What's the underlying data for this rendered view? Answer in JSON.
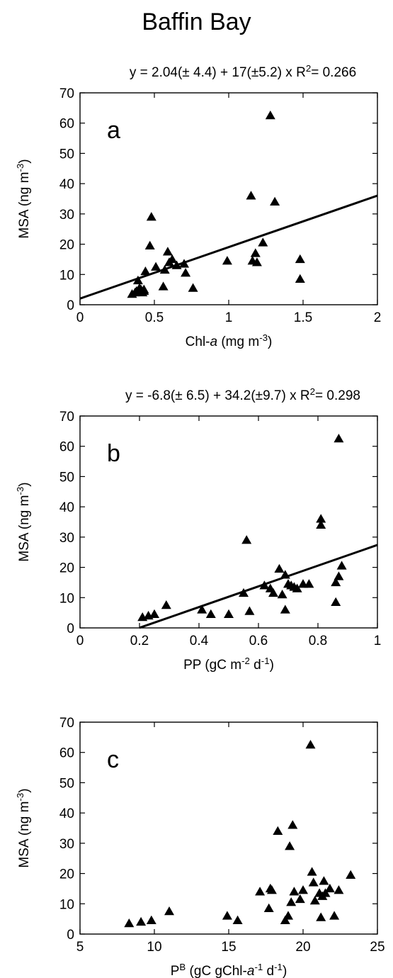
{
  "figure": {
    "title": "Baffin Bay"
  },
  "chart_data": [
    {
      "type": "scatter",
      "panel_label": "a",
      "equation": "y = 2.04(± 4.4) + 17(±5.2) x",
      "r2_prefix": "R",
      "r2_sup": "2",
      "r2_value": "= 0.266",
      "ylabel": "MSA (ng m",
      "ylabel_sup": "-3",
      "ylabel_end": ")",
      "xlabel_parts": [
        {
          "text": "Chl-"
        },
        {
          "text": "a",
          "italic": true
        },
        {
          "text": " (mg m"
        },
        {
          "text": "-3",
          "sup": true
        },
        {
          "text": ")"
        }
      ],
      "xlim": [
        0,
        2
      ],
      "ylim": [
        0,
        70
      ],
      "xticks": [
        0,
        0.5,
        1,
        1.5,
        2
      ],
      "xtick_labels": [
        "0",
        "0.5",
        "1",
        "1.5",
        "2"
      ],
      "yticks": [
        0,
        10,
        20,
        30,
        40,
        50,
        60,
        70
      ],
      "ytick_labels": [
        "0",
        "10",
        "20",
        "30",
        "40",
        "50",
        "60",
        "70"
      ],
      "fit_line": {
        "intercept": 2.04,
        "slope": 17,
        "x_range": [
          0,
          2
        ]
      },
      "points": {
        "x": [
          0.35,
          0.37,
          0.38,
          0.4,
          0.41,
          0.42,
          0.43,
          0.44,
          0.39,
          0.43,
          0.47,
          0.48,
          0.51,
          0.56,
          0.57,
          0.59,
          0.6,
          0.62,
          0.65,
          0.7,
          0.71,
          0.76,
          0.99,
          1.15,
          1.16,
          1.18,
          1.19,
          1.23,
          1.28,
          1.31,
          1.48,
          1.48
        ],
        "y": [
          3.5,
          4,
          4.5,
          5.5,
          5,
          4,
          4.5,
          11,
          8,
          5,
          19.5,
          29,
          12.5,
          6,
          11.5,
          17.5,
          14,
          15,
          13,
          13.5,
          10.5,
          5.5,
          14.5,
          36,
          14.5,
          17,
          14,
          20.5,
          62.5,
          34,
          15,
          8.5
        ]
      }
    },
    {
      "type": "scatter",
      "panel_label": "b",
      "equation": "y = -6.8(± 6.5) + 34.2(±9.7) x",
      "r2_prefix": "R",
      "r2_sup": "2",
      "r2_value": "= 0.298",
      "ylabel": "MSA (ng m",
      "ylabel_sup": "-3",
      "ylabel_end": ")",
      "xlabel_parts": [
        {
          "text": "PP (gC m"
        },
        {
          "text": "-2",
          "sup": true
        },
        {
          "text": " d"
        },
        {
          "text": "-1",
          "sup": true
        },
        {
          "text": ")"
        }
      ],
      "xlim": [
        0,
        1
      ],
      "ylim": [
        0,
        70
      ],
      "xticks": [
        0,
        0.2,
        0.4,
        0.6,
        0.8,
        1
      ],
      "xtick_labels": [
        "0",
        "0.2",
        "0.4",
        "0.6",
        "0.8",
        "1"
      ],
      "yticks": [
        0,
        10,
        20,
        30,
        40,
        50,
        60,
        70
      ],
      "ytick_labels": [
        "0",
        "10",
        "20",
        "30",
        "40",
        "50",
        "60",
        "70"
      ],
      "fit_line": {
        "intercept": -6.8,
        "slope": 34.2,
        "x_range": [
          0.2,
          1
        ]
      },
      "points": {
        "x": [
          0.21,
          0.23,
          0.25,
          0.29,
          0.41,
          0.44,
          0.5,
          0.55,
          0.56,
          0.57,
          0.62,
          0.64,
          0.65,
          0.67,
          0.68,
          0.69,
          0.69,
          0.7,
          0.71,
          0.72,
          0.73,
          0.75,
          0.77,
          0.81,
          0.81,
          0.86,
          0.86,
          0.87,
          0.87,
          0.88
        ],
        "y": [
          3.5,
          4,
          4.5,
          7.5,
          6,
          4.5,
          4.5,
          11.5,
          29,
          5.5,
          14,
          13,
          11.5,
          19.5,
          11,
          6,
          17.5,
          14.5,
          14,
          13.5,
          13,
          14.5,
          14.5,
          36,
          34,
          15,
          8.5,
          62.5,
          17,
          20.5
        ]
      }
    },
    {
      "type": "scatter",
      "panel_label": "c",
      "ylabel": "MSA (ng m",
      "ylabel_sup": "-3",
      "ylabel_end": ")",
      "xlabel_parts": [
        {
          "text": "P"
        },
        {
          "text": "B",
          "sup": true
        },
        {
          "text": " (gC gChl-"
        },
        {
          "text": "a",
          "italic": true
        },
        {
          "text": "-1",
          "sup": true
        },
        {
          "text": " d"
        },
        {
          "text": "-1",
          "sup": true
        },
        {
          "text": ")"
        }
      ],
      "xlim": [
        5,
        25
      ],
      "ylim": [
        0,
        70
      ],
      "xticks": [
        5,
        10,
        15,
        20,
        25
      ],
      "xtick_labels": [
        "5",
        "10",
        "15",
        "20",
        "25"
      ],
      "yticks": [
        0,
        10,
        20,
        30,
        40,
        50,
        60,
        70
      ],
      "ytick_labels": [
        "0",
        "10",
        "20",
        "30",
        "40",
        "50",
        "60",
        "70"
      ],
      "fit_line": null,
      "points": {
        "x": [
          8.3,
          9.1,
          9.8,
          11.0,
          14.9,
          15.6,
          17.1,
          17.7,
          17.8,
          17.9,
          18.3,
          18.8,
          19.0,
          19.1,
          19.2,
          19.3,
          19.4,
          19.8,
          20.0,
          20.5,
          20.6,
          20.7,
          20.8,
          21.1,
          21.2,
          21.3,
          21.4,
          21.5,
          21.8,
          22.1,
          22.4,
          23.2
        ],
        "y": [
          3.5,
          4,
          4.5,
          7.5,
          6,
          4.5,
          14,
          8.5,
          15,
          14.5,
          34,
          4.5,
          6,
          29,
          10.5,
          36,
          14,
          11.5,
          14.5,
          62.5,
          20.5,
          17,
          11,
          13.5,
          5.5,
          12.5,
          17.5,
          13.5,
          15,
          6,
          14.5,
          19.5
        ]
      }
    }
  ]
}
